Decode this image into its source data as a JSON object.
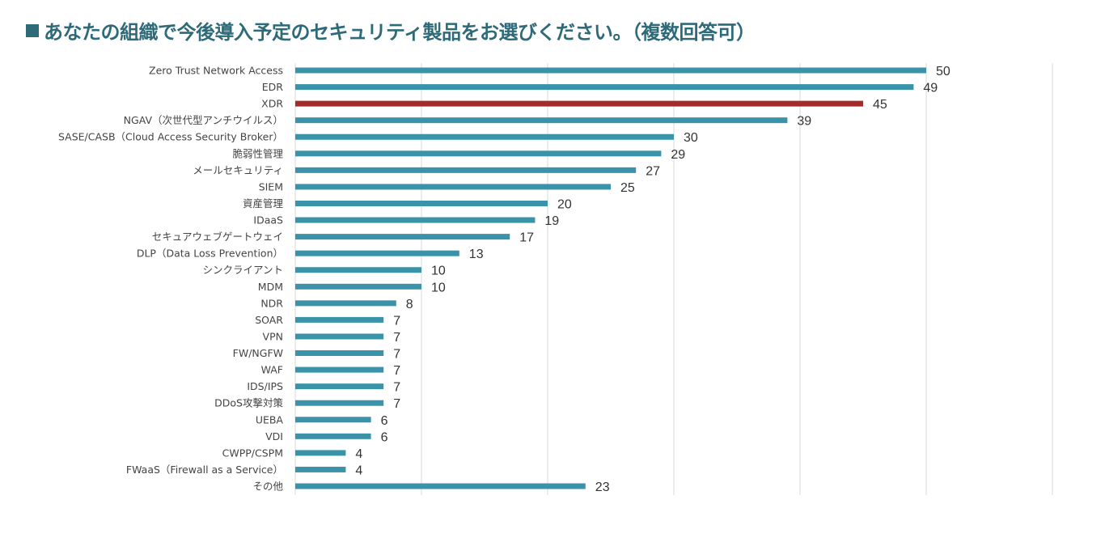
{
  "title": "あなたの組織で今後導入予定のセキュリティ製品をお選びください。（複数回答可）",
  "title_marker_icon": "square-bullet-icon",
  "colors": {
    "title": "#2e6a78",
    "bar_default": "#3a93a8",
    "bar_highlight": "#a52a2a",
    "grid": "#d9d9d9"
  },
  "chart_data": {
    "type": "bar",
    "orientation": "horizontal",
    "title": "あなたの組織で今後導入予定のセキュリティ製品をお選びください。（複数回答可）",
    "xlabel": "",
    "ylabel": "",
    "xlim": [
      0,
      60
    ],
    "grid_step": 10,
    "grid": true,
    "x_tick_labels_shown": false,
    "legend": "none",
    "highlight_category": "XDR",
    "categories": [
      "Zero Trust Network Access",
      "EDR",
      "XDR",
      "NGAV（次世代型アンチウイルス）",
      "SASE/CASB（Cloud Access Security Broker）",
      "脆弱性管理",
      "メールセキュリティ",
      "SIEM",
      "資産管理",
      "IDaaS",
      "セキュアウェブゲートウェイ",
      "DLP（Data Loss Prevention）",
      "シンクライアント",
      "MDM",
      "NDR",
      "SOAR",
      "VPN",
      "FW/NGFW",
      "WAF",
      "IDS/IPS",
      "DDoS攻撃対策",
      "UEBA",
      "VDI",
      "CWPP/CSPM",
      "FWaaS（Firewall as a Service）",
      "その他"
    ],
    "values": [
      50,
      49,
      45,
      39,
      30,
      29,
      27,
      25,
      20,
      19,
      17,
      13,
      10,
      10,
      8,
      7,
      7,
      7,
      7,
      7,
      7,
      6,
      6,
      4,
      4,
      23
    ]
  }
}
